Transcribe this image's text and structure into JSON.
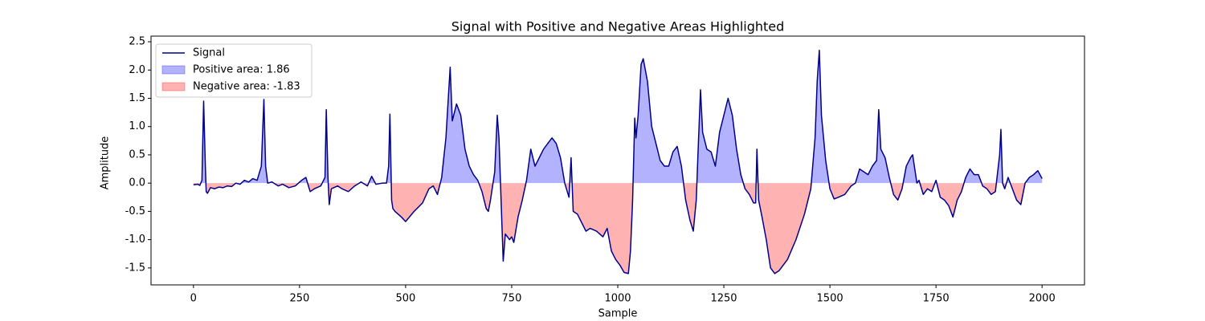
{
  "chart_data": {
    "type": "line",
    "title": "Signal with Positive and Negative Areas Highlighted",
    "x_label": "Sample",
    "y_label": "Amplitude",
    "x": [
      0,
      10,
      15,
      20,
      24,
      28,
      30,
      33,
      40,
      50,
      60,
      70,
      80,
      90,
      100,
      110,
      120,
      130,
      140,
      150,
      160,
      166,
      170,
      175,
      185,
      200,
      210,
      225,
      240,
      255,
      265,
      275,
      285,
      300,
      310,
      313,
      317,
      320,
      325,
      340,
      350,
      365,
      380,
      395,
      410,
      420,
      430,
      445,
      455,
      460,
      463,
      467,
      470,
      475,
      490,
      500,
      520,
      540,
      555,
      565,
      575,
      585,
      595,
      605,
      610,
      620,
      630,
      640,
      650,
      660,
      670,
      680,
      690,
      695,
      700,
      710,
      716,
      720,
      725,
      730,
      735,
      745,
      750,
      755,
      765,
      775,
      785,
      795,
      805,
      815,
      825,
      835,
      845,
      855,
      865,
      875,
      885,
      890,
      895,
      905,
      915,
      925,
      935,
      950,
      965,
      975,
      985,
      995,
      1005,
      1015,
      1025,
      1030,
      1035,
      1040,
      1043,
      1048,
      1055,
      1060,
      1070,
      1080,
      1090,
      1100,
      1110,
      1120,
      1130,
      1140,
      1150,
      1160,
      1170,
      1178,
      1185,
      1190,
      1195,
      1200,
      1210,
      1220,
      1230,
      1240,
      1250,
      1260,
      1270,
      1280,
      1290,
      1300,
      1310,
      1320,
      1325,
      1328,
      1332,
      1340,
      1350,
      1360,
      1370,
      1380,
      1400,
      1420,
      1440,
      1455,
      1465,
      1470,
      1475,
      1480,
      1490,
      1500,
      1510,
      1520,
      1535,
      1550,
      1560,
      1570,
      1580,
      1590,
      1600,
      1610,
      1615,
      1620,
      1630,
      1640,
      1650,
      1660,
      1670,
      1680,
      1690,
      1695,
      1705,
      1710,
      1720,
      1730,
      1740,
      1750,
      1760,
      1770,
      1780,
      1790,
      1800,
      1810,
      1820,
      1830,
      1840,
      1850,
      1860,
      1870,
      1880,
      1890,
      1900,
      1903,
      1907,
      1912,
      1920,
      1930,
      1940,
      1950,
      1960,
      1970,
      1980,
      1990,
      2000
    ],
    "series": [
      {
        "name": "Signal",
        "color": "#00008b",
        "values": [
          -0.03,
          -0.02,
          -0.04,
          0.05,
          1.45,
          0.3,
          -0.15,
          -0.18,
          -0.08,
          -0.1,
          -0.07,
          -0.08,
          -0.05,
          -0.06,
          0.0,
          -0.02,
          0.05,
          0.02,
          0.08,
          0.05,
          0.3,
          1.48,
          0.3,
          0.0,
          0.02,
          -0.05,
          -0.02,
          -0.08,
          -0.05,
          0.05,
          0.1,
          -0.15,
          -0.1,
          -0.05,
          0.1,
          1.3,
          0.1,
          -0.38,
          -0.1,
          -0.05,
          -0.1,
          -0.15,
          -0.05,
          0.02,
          -0.05,
          0.12,
          -0.02,
          0.0,
          0.0,
          0.3,
          1.22,
          -0.3,
          -0.45,
          -0.5,
          -0.6,
          -0.68,
          -0.5,
          -0.35,
          -0.1,
          -0.05,
          -0.2,
          0.1,
          0.8,
          2.05,
          1.1,
          1.4,
          1.2,
          0.6,
          0.3,
          0.15,
          0.05,
          -0.15,
          -0.45,
          -0.5,
          -0.3,
          0.2,
          1.2,
          0.8,
          -0.3,
          -1.38,
          -0.9,
          -1.0,
          -0.95,
          -1.05,
          -0.6,
          -0.3,
          0.05,
          0.6,
          0.3,
          0.45,
          0.6,
          0.7,
          0.8,
          0.7,
          0.45,
          0.0,
          -0.25,
          0.45,
          -0.5,
          -0.55,
          -0.7,
          -0.85,
          -0.8,
          -0.85,
          -0.95,
          -0.8,
          -1.2,
          -1.35,
          -1.45,
          -1.58,
          -1.6,
          -1.2,
          -0.3,
          1.15,
          0.8,
          1.2,
          2.1,
          2.2,
          1.8,
          1.0,
          0.7,
          0.4,
          0.3,
          0.3,
          0.55,
          0.65,
          0.3,
          -0.3,
          -0.65,
          -0.85,
          -0.3,
          0.7,
          1.65,
          0.9,
          0.6,
          0.55,
          0.3,
          0.9,
          1.2,
          1.5,
          1.2,
          0.6,
          0.15,
          -0.1,
          -0.2,
          -0.35,
          -0.35,
          0.6,
          -0.3,
          -0.6,
          -1.0,
          -1.5,
          -1.6,
          -1.55,
          -1.35,
          -1.0,
          -0.55,
          -0.1,
          0.8,
          1.8,
          2.35,
          1.2,
          0.4,
          -0.1,
          -0.28,
          -0.25,
          -0.2,
          -0.05,
          0.0,
          0.25,
          0.2,
          0.15,
          0.3,
          0.4,
          1.3,
          0.6,
          0.45,
          0.1,
          -0.2,
          -0.3,
          -0.1,
          0.3,
          0.45,
          0.5,
          0.0,
          0.05,
          -0.2,
          -0.1,
          -0.15,
          0.05,
          -0.25,
          -0.3,
          -0.4,
          -0.6,
          -0.3,
          -0.15,
          0.1,
          0.25,
          0.15,
          0.15,
          -0.05,
          -0.1,
          -0.2,
          -0.15,
          0.5,
          0.95,
          0.0,
          -0.1,
          0.1,
          -0.1,
          -0.3,
          -0.38,
          0.0,
          0.1,
          0.15,
          0.22,
          0.08
        ]
      }
    ],
    "fills": [
      {
        "name": "Positive area: 1.86",
        "color": "#0000ff"
      },
      {
        "name": "Negative area: -1.83",
        "color": "#ff0000"
      }
    ],
    "xlim": [
      -100,
      2100
    ],
    "ylim": [
      -1.8,
      2.6
    ],
    "xticks": [
      0,
      250,
      500,
      750,
      1000,
      1250,
      1500,
      1750,
      2000
    ],
    "yticks": [
      -1.5,
      {
        "value": -1,
        "label": "-1.0"
      },
      -0.5,
      {
        "value": 0,
        "label": "0.0"
      },
      0.5,
      {
        "value": 1,
        "label": "1.0"
      },
      1.5,
      {
        "value": 2,
        "label": "2.0"
      },
      2.5
    ],
    "legend": "upper left"
  }
}
